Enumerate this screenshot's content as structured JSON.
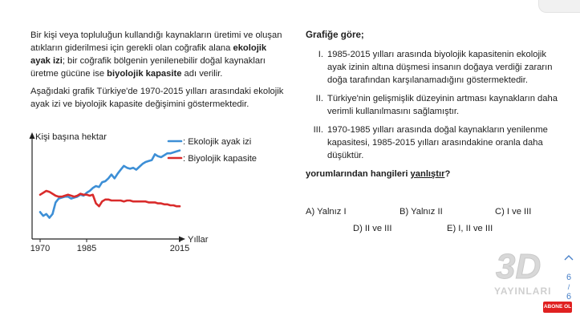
{
  "intro": {
    "p1_a": "Bir kişi veya topluluğun kullandığı kaynakların üretimi ve oluşan atıkların giderilmesi için gerekli olan coğrafik alana ",
    "p1_b": "ekolojik ayak izi",
    "p1_c": "; bir coğrafik bölgenin yenilenebilir doğal kaynakları üretme gücüne ise ",
    "p1_d": "biyolojik kapasite",
    "p1_e": " adı verilir.",
    "p2": "Aşağıdaki grafik Türkiye'de 1970-2015 yılları arasındaki ekolojik ayak izi ve biyolojik kapasite değişimini göstermektedir."
  },
  "chart_data": {
    "type": "line",
    "ylabel": "Kişi başına hektar",
    "xlabel": "Yıllar",
    "x_ticks": [
      "1970",
      "1985",
      "2015"
    ],
    "legend": [
      "Ekolojik ayak izi",
      "Biyolojik kapasite"
    ],
    "legend_prefix": ":",
    "legend_position": "top-right",
    "y_axis_values": false,
    "series": [
      {
        "name": "Ekolojik ayak izi",
        "color": "#3d8fd6",
        "points": [
          [
            1970,
            0.28
          ],
          [
            1971,
            0.24
          ],
          [
            1972,
            0.26
          ],
          [
            1973,
            0.22
          ],
          [
            1974,
            0.26
          ],
          [
            1975,
            0.38
          ],
          [
            1976,
            0.42
          ],
          [
            1977,
            0.43
          ],
          [
            1978,
            0.44
          ],
          [
            1979,
            0.44
          ],
          [
            1980,
            0.42
          ],
          [
            1981,
            0.43
          ],
          [
            1982,
            0.44
          ],
          [
            1983,
            0.46
          ],
          [
            1984,
            0.45
          ],
          [
            1985,
            0.48
          ],
          [
            1986,
            0.5
          ],
          [
            1987,
            0.53
          ],
          [
            1988,
            0.55
          ],
          [
            1989,
            0.54
          ],
          [
            1990,
            0.59
          ],
          [
            1991,
            0.6
          ],
          [
            1992,
            0.63
          ],
          [
            1993,
            0.67
          ],
          [
            1994,
            0.63
          ],
          [
            1995,
            0.68
          ],
          [
            1996,
            0.72
          ],
          [
            1997,
            0.76
          ],
          [
            1998,
            0.74
          ],
          [
            1999,
            0.73
          ],
          [
            2000,
            0.74
          ],
          [
            2001,
            0.72
          ],
          [
            2002,
            0.75
          ],
          [
            2003,
            0.78
          ],
          [
            2004,
            0.8
          ],
          [
            2005,
            0.81
          ],
          [
            2006,
            0.82
          ],
          [
            2007,
            0.88
          ],
          [
            2008,
            0.86
          ],
          [
            2009,
            0.85
          ],
          [
            2010,
            0.87
          ],
          [
            2011,
            0.89
          ],
          [
            2012,
            0.89
          ],
          [
            2013,
            0.9
          ],
          [
            2014,
            0.91
          ],
          [
            2015,
            0.92
          ]
        ]
      },
      {
        "name": "Biyolojik kapasite",
        "color": "#d92b2b",
        "points": [
          [
            1970,
            0.46
          ],
          [
            1971,
            0.48
          ],
          [
            1972,
            0.5
          ],
          [
            1973,
            0.49
          ],
          [
            1974,
            0.47
          ],
          [
            1975,
            0.45
          ],
          [
            1976,
            0.44
          ],
          [
            1977,
            0.44
          ],
          [
            1978,
            0.45
          ],
          [
            1979,
            0.46
          ],
          [
            1980,
            0.45
          ],
          [
            1981,
            0.44
          ],
          [
            1982,
            0.45
          ],
          [
            1983,
            0.47
          ],
          [
            1984,
            0.46
          ],
          [
            1985,
            0.46
          ],
          [
            1986,
            0.45
          ],
          [
            1987,
            0.46
          ],
          [
            1988,
            0.37
          ],
          [
            1989,
            0.34
          ],
          [
            1990,
            0.39
          ],
          [
            1991,
            0.41
          ],
          [
            1992,
            0.41
          ],
          [
            1993,
            0.4
          ],
          [
            1994,
            0.4
          ],
          [
            1995,
            0.4
          ],
          [
            1996,
            0.4
          ],
          [
            1997,
            0.39
          ],
          [
            1998,
            0.4
          ],
          [
            1999,
            0.4
          ],
          [
            2000,
            0.39
          ],
          [
            2001,
            0.39
          ],
          [
            2002,
            0.39
          ],
          [
            2003,
            0.39
          ],
          [
            2004,
            0.39
          ],
          [
            2005,
            0.38
          ],
          [
            2006,
            0.38
          ],
          [
            2007,
            0.38
          ],
          [
            2008,
            0.37
          ],
          [
            2009,
            0.37
          ],
          [
            2010,
            0.36
          ],
          [
            2011,
            0.36
          ],
          [
            2012,
            0.35
          ],
          [
            2013,
            0.35
          ],
          [
            2014,
            0.34
          ],
          [
            2015,
            0.34
          ]
        ]
      }
    ],
    "xlim": [
      1970,
      2019
    ],
    "ylim": [
      0,
      1
    ]
  },
  "right": {
    "heading": "Grafiğe göre;",
    "statements": [
      {
        "num": "I.",
        "text": "1985-2015 yılları arasında biyolojik kapasitenin ekolojik ayak izinin altına düşmesi insanın doğaya verdiği zararın doğa tarafından karşılanamadığını göstermektedir."
      },
      {
        "num": "II.",
        "text": "Türkiye'nin gelişmişlik düzeyinin artması kaynakların daha verimli kullanılmasını sağlamıştır."
      },
      {
        "num": "III.",
        "text": "1970-1985 yılları arasında doğal kaynakların yenilenme kapasitesi, 1985-2015 yılları arasındakine oranla daha düşüktür."
      }
    ],
    "question_a": "yorumlarından hangileri ",
    "question_b": "yanlıştır",
    "question_c": "?"
  },
  "options": {
    "a": "A) Yalnız I",
    "b": "B) Yalnız II",
    "c": "C) I ve III",
    "d": "D) II ve III",
    "e": "E) I, II ve III"
  },
  "watermark": {
    "big": "3D",
    "small": "YAYINLARI"
  },
  "nav": {
    "current": "6",
    "separator": "/",
    "total": "6"
  },
  "subscribe": "ABONE OL"
}
